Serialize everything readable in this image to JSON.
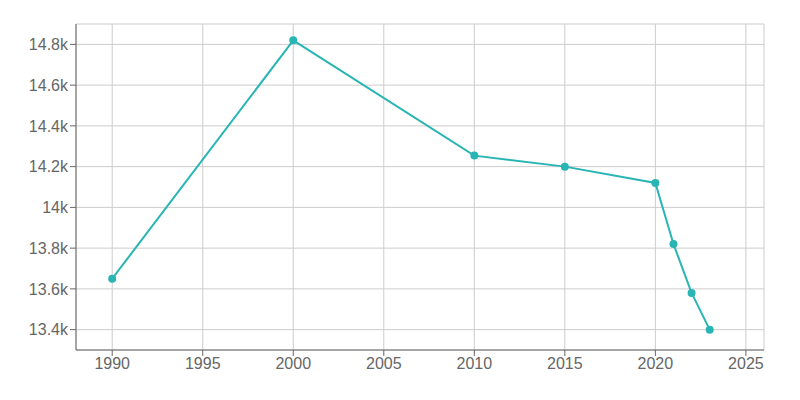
{
  "chart_data": {
    "type": "line",
    "x": [
      1990,
      2000,
      2010,
      2015,
      2020,
      2021,
      2022,
      2023
    ],
    "values": [
      13650,
      14820,
      14254,
      14200,
      14120,
      13820,
      13580,
      13400
    ],
    "color": "#2ab5b5",
    "marker": "circle",
    "xlim": [
      1988,
      2026
    ],
    "xticks": [
      1990,
      1995,
      2000,
      2005,
      2010,
      2015,
      2020,
      2025
    ],
    "ylim": [
      13300,
      14900
    ],
    "yticks": [
      {
        "value": 13400,
        "label": "13.4k"
      },
      {
        "value": 13600,
        "label": "13.6k"
      },
      {
        "value": 13800,
        "label": "13.8k"
      },
      {
        "value": 14000,
        "label": "14k"
      },
      {
        "value": 14200,
        "label": "14.2k"
      },
      {
        "value": 14400,
        "label": "14.4k"
      },
      {
        "value": 14600,
        "label": "14.6k"
      },
      {
        "value": 14800,
        "label": "14.8k"
      }
    ],
    "grid": true
  }
}
